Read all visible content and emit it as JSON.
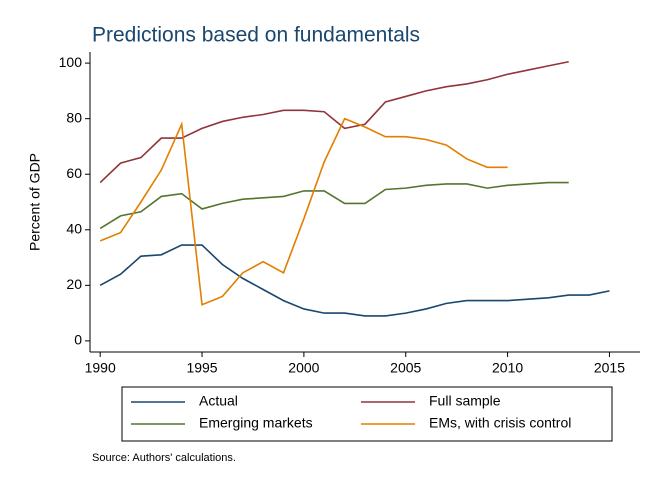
{
  "chart_data": {
    "type": "line",
    "title": "Predictions based on fundamentals",
    "ylabel": "Percent of GDP",
    "annotation": "Source: Authors' calculations.",
    "x": [
      1990,
      1991,
      1992,
      1993,
      1994,
      1995,
      1996,
      1997,
      1998,
      1999,
      2000,
      2001,
      2002,
      2003,
      2004,
      2005,
      2006,
      2007,
      2008,
      2009,
      2010,
      2011,
      2012,
      2013,
      2014,
      2015
    ],
    "series": [
      {
        "name": "Actual",
        "color": "#1a476f",
        "values": [
          20,
          24,
          30.5,
          31,
          34.5,
          34.5,
          27.5,
          22.5,
          18.5,
          14.5,
          11.5,
          10,
          10,
          9,
          9,
          10,
          11.5,
          13.5,
          14.5,
          14.5,
          14.5,
          15,
          15.5,
          16.5,
          16.5,
          18
        ]
      },
      {
        "name": "Full sample",
        "color": "#90353b",
        "values": [
          57,
          64,
          66,
          73,
          73,
          76.5,
          79,
          80.5,
          81.5,
          83,
          83,
          82.5,
          76.5,
          78,
          86,
          88,
          90,
          91.5,
          92.5,
          94,
          96,
          97.5,
          99,
          100.5,
          null,
          null
        ]
      },
      {
        "name": "Emerging markets",
        "color": "#55752f",
        "values": [
          40.5,
          45,
          46.5,
          52,
          53,
          47.5,
          49.5,
          51,
          51.5,
          52,
          54,
          54,
          49.5,
          49.5,
          54.5,
          55,
          56,
          56.5,
          56.5,
          55,
          56,
          56.5,
          57,
          57,
          null,
          null
        ]
      },
      {
        "name": "EMs, with crisis control",
        "color": "#e37e00",
        "values": [
          36,
          39,
          50,
          61.5,
          78,
          13,
          16,
          24.5,
          28.5,
          24.5,
          44,
          64.5,
          80,
          77,
          73.5,
          73.5,
          72.5,
          70.5,
          65.5,
          62.5,
          62.5,
          null,
          null,
          null,
          null,
          null
        ]
      }
    ],
    "xlim": [
      1989.5,
      2016.5
    ],
    "xticks": [
      1990,
      1995,
      2000,
      2005,
      2010,
      2015
    ],
    "ylim": [
      -4,
      104
    ],
    "yticks": [
      0,
      20,
      40,
      60,
      80,
      100
    ]
  }
}
